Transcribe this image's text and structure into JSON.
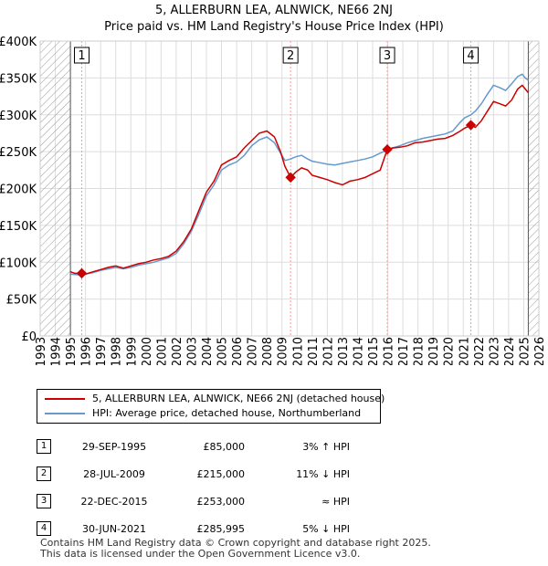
{
  "title": "5, ALLERBURN LEA, ALNWICK, NE66 2NJ",
  "subtitle": "Price paid vs. HM Land Registry's House Price Index (HPI)",
  "colors": {
    "property": "#cc0000",
    "hpi": "#6699cc",
    "marker": "#cc0000",
    "grid": "#dddddd",
    "hatch": "#999999",
    "vline": "#ff9999"
  },
  "chart_data": {
    "type": "line",
    "title": "5, ALLERBURN LEA, ALNWICK, NE66 2NJ",
    "subtitle": "Price paid vs. HM Land Registry's House Price Index (HPI)",
    "xlim": [
      1993,
      2026
    ],
    "ylim": [
      0,
      400000
    ],
    "xticks": [
      1993,
      1994,
      1995,
      1996,
      1997,
      1998,
      1999,
      2000,
      2001,
      2002,
      2003,
      2004,
      2005,
      2006,
      2007,
      2008,
      2009,
      2010,
      2011,
      2012,
      2013,
      2014,
      2015,
      2016,
      2017,
      2018,
      2019,
      2020,
      2021,
      2022,
      2023,
      2024,
      2025,
      2026
    ],
    "yticks": [
      {
        "value": 0,
        "label": "£0"
      },
      {
        "value": 50000,
        "label": "£50K"
      },
      {
        "value": 100000,
        "label": "£100K"
      },
      {
        "value": 150000,
        "label": "£150K"
      },
      {
        "value": 200000,
        "label": "£200K"
      },
      {
        "value": 250000,
        "label": "£250K"
      },
      {
        "value": 300000,
        "label": "£300K"
      },
      {
        "value": 350000,
        "label": "£350K"
      },
      {
        "value": 400000,
        "label": "£400K"
      }
    ],
    "data_range": [
      1995.0,
      2025.3
    ],
    "series": [
      {
        "name": "5, ALLERBURN LEA, ALNWICK, NE66 2NJ (detached house)",
        "color": "#cc0000",
        "points": [
          [
            1995.0,
            87000
          ],
          [
            1995.3,
            85000
          ],
          [
            1995.75,
            85000
          ],
          [
            1996.0,
            84000
          ],
          [
            1996.5,
            87000
          ],
          [
            1997.0,
            90000
          ],
          [
            1997.5,
            93000
          ],
          [
            1998.0,
            95000
          ],
          [
            1998.5,
            92000
          ],
          [
            1999.0,
            95000
          ],
          [
            1999.5,
            98000
          ],
          [
            2000.0,
            100000
          ],
          [
            2000.5,
            103000
          ],
          [
            2001.0,
            105000
          ],
          [
            2001.5,
            108000
          ],
          [
            2002.0,
            115000
          ],
          [
            2002.5,
            128000
          ],
          [
            2003.0,
            145000
          ],
          [
            2003.5,
            170000
          ],
          [
            2004.0,
            195000
          ],
          [
            2004.5,
            210000
          ],
          [
            2005.0,
            232000
          ],
          [
            2005.5,
            238000
          ],
          [
            2006.0,
            243000
          ],
          [
            2006.5,
            255000
          ],
          [
            2007.0,
            265000
          ],
          [
            2007.5,
            275000
          ],
          [
            2008.0,
            278000
          ],
          [
            2008.5,
            270000
          ],
          [
            2008.9,
            250000
          ],
          [
            2009.2,
            230000
          ],
          [
            2009.57,
            215000
          ],
          [
            2009.9,
            222000
          ],
          [
            2010.3,
            228000
          ],
          [
            2010.7,
            225000
          ],
          [
            2011.0,
            218000
          ],
          [
            2011.5,
            215000
          ],
          [
            2012.0,
            212000
          ],
          [
            2012.5,
            208000
          ],
          [
            2013.0,
            205000
          ],
          [
            2013.5,
            210000
          ],
          [
            2014.0,
            212000
          ],
          [
            2014.5,
            215000
          ],
          [
            2015.0,
            220000
          ],
          [
            2015.5,
            225000
          ],
          [
            2015.97,
            253000
          ],
          [
            2016.3,
            255000
          ],
          [
            2016.8,
            256000
          ],
          [
            2017.3,
            258000
          ],
          [
            2017.8,
            262000
          ],
          [
            2018.3,
            263000
          ],
          [
            2018.8,
            265000
          ],
          [
            2019.3,
            267000
          ],
          [
            2019.8,
            268000
          ],
          [
            2020.3,
            272000
          ],
          [
            2020.8,
            278000
          ],
          [
            2021.1,
            282000
          ],
          [
            2021.5,
            285995
          ],
          [
            2021.8,
            283000
          ],
          [
            2022.2,
            292000
          ],
          [
            2022.6,
            305000
          ],
          [
            2023.0,
            318000
          ],
          [
            2023.4,
            315000
          ],
          [
            2023.8,
            312000
          ],
          [
            2024.2,
            320000
          ],
          [
            2024.6,
            335000
          ],
          [
            2024.9,
            340000
          ],
          [
            2025.1,
            335000
          ],
          [
            2025.3,
            330000
          ]
        ]
      },
      {
        "name": "HPI: Average price, detached house, Northumberland",
        "color": "#6699cc",
        "points": [
          [
            1995.0,
            84000
          ],
          [
            1995.5,
            83000
          ],
          [
            1996.0,
            84000
          ],
          [
            1996.5,
            86000
          ],
          [
            1997.0,
            89000
          ],
          [
            1997.5,
            91000
          ],
          [
            1998.0,
            93000
          ],
          [
            1998.5,
            91000
          ],
          [
            1999.0,
            93000
          ],
          [
            1999.5,
            96000
          ],
          [
            2000.0,
            98000
          ],
          [
            2000.5,
            100000
          ],
          [
            2001.0,
            103000
          ],
          [
            2001.5,
            106000
          ],
          [
            2002.0,
            112000
          ],
          [
            2002.5,
            125000
          ],
          [
            2003.0,
            142000
          ],
          [
            2003.5,
            165000
          ],
          [
            2004.0,
            190000
          ],
          [
            2004.5,
            205000
          ],
          [
            2005.0,
            225000
          ],
          [
            2005.5,
            232000
          ],
          [
            2006.0,
            236000
          ],
          [
            2006.5,
            245000
          ],
          [
            2007.0,
            258000
          ],
          [
            2007.5,
            266000
          ],
          [
            2008.0,
            270000
          ],
          [
            2008.5,
            262000
          ],
          [
            2008.9,
            248000
          ],
          [
            2009.2,
            238000
          ],
          [
            2009.57,
            240000
          ],
          [
            2009.9,
            243000
          ],
          [
            2010.3,
            245000
          ],
          [
            2010.7,
            240000
          ],
          [
            2011.0,
            237000
          ],
          [
            2011.5,
            235000
          ],
          [
            2012.0,
            233000
          ],
          [
            2012.5,
            232000
          ],
          [
            2013.0,
            234000
          ],
          [
            2013.5,
            236000
          ],
          [
            2014.0,
            238000
          ],
          [
            2014.5,
            240000
          ],
          [
            2015.0,
            243000
          ],
          [
            2015.5,
            248000
          ],
          [
            2015.97,
            252000
          ],
          [
            2016.3,
            255000
          ],
          [
            2016.8,
            258000
          ],
          [
            2017.3,
            262000
          ],
          [
            2017.8,
            265000
          ],
          [
            2018.3,
            268000
          ],
          [
            2018.8,
            270000
          ],
          [
            2019.3,
            272000
          ],
          [
            2019.8,
            274000
          ],
          [
            2020.3,
            278000
          ],
          [
            2020.8,
            290000
          ],
          [
            2021.1,
            296000
          ],
          [
            2021.5,
            300000
          ],
          [
            2021.8,
            305000
          ],
          [
            2022.2,
            315000
          ],
          [
            2022.6,
            328000
          ],
          [
            2023.0,
            340000
          ],
          [
            2023.4,
            337000
          ],
          [
            2023.8,
            333000
          ],
          [
            2024.2,
            342000
          ],
          [
            2024.6,
            352000
          ],
          [
            2024.9,
            355000
          ],
          [
            2025.1,
            350000
          ],
          [
            2025.3,
            347000
          ]
        ]
      }
    ],
    "transactions": [
      {
        "id": "1",
        "x": 1995.75,
        "y": 85000
      },
      {
        "id": "2",
        "x": 2009.57,
        "y": 215000
      },
      {
        "id": "3",
        "x": 2015.97,
        "y": 253000
      },
      {
        "id": "4",
        "x": 2021.5,
        "y": 285995
      }
    ],
    "xlabel": "",
    "ylabel": ""
  },
  "legend": {
    "property_label": "5, ALLERBURN LEA, ALNWICK, NE66 2NJ (detached house)",
    "hpi_label": "HPI: Average price, detached house, Northumberland"
  },
  "transactions_table": [
    {
      "num": "1",
      "date": "29-SEP-1995",
      "price": "£85,000",
      "hpi": "3% ↑ HPI"
    },
    {
      "num": "2",
      "date": "28-JUL-2009",
      "price": "£215,000",
      "hpi": "11% ↓ HPI"
    },
    {
      "num": "3",
      "date": "22-DEC-2015",
      "price": "£253,000",
      "hpi": "≈ HPI"
    },
    {
      "num": "4",
      "date": "30-JUN-2021",
      "price": "£285,995",
      "hpi": "5% ↓ HPI"
    }
  ],
  "footer": {
    "line1": "Contains HM Land Registry data © Crown copyright and database right 2025.",
    "line2": "This data is licensed under the Open Government Licence v3.0."
  }
}
